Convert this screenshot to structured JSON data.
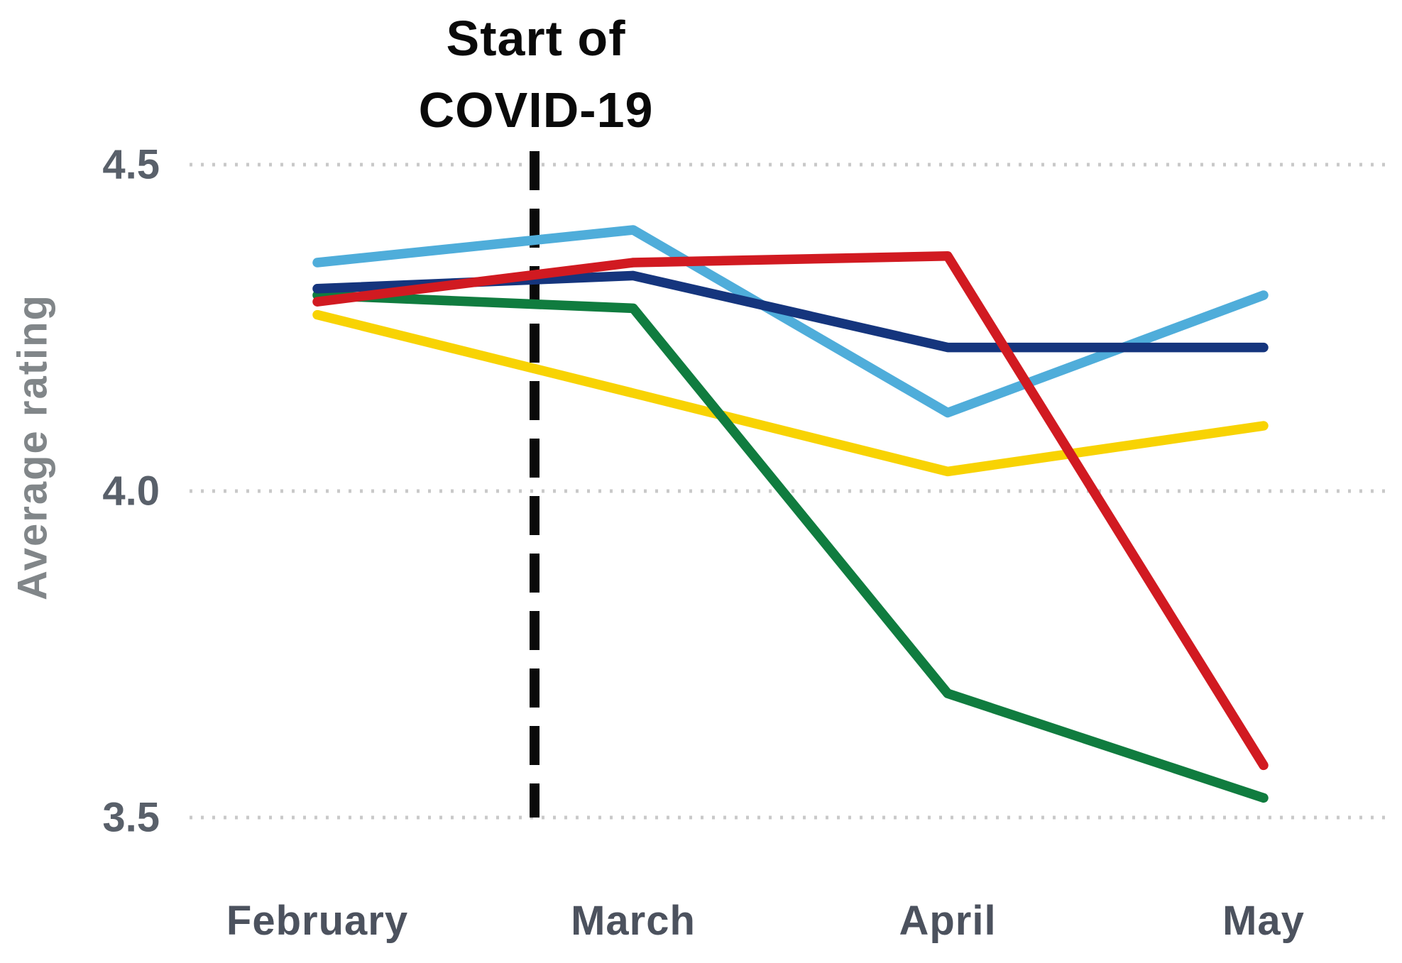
{
  "annotation": {
    "title_line1": "Start of",
    "title_line2": "COVID-19",
    "full_label": "Start of COVID-19",
    "marker": "vertical dashed black line between February and March"
  },
  "y_axis": {
    "label": "Average rating",
    "ticks": [
      {
        "label": "4.5",
        "value": 4.5
      },
      {
        "label": "4.0",
        "value": 4.0
      },
      {
        "label": "3.5",
        "value": 3.5
      }
    ]
  },
  "x_axis": {
    "categories": [
      "February",
      "March",
      "April",
      "May"
    ]
  },
  "colors": {
    "gridline": "#c9c9c9",
    "annotation_line": "#0a0a0a",
    "background": "#ffffff",
    "sky_blue_series": "#4fadda",
    "navy_series": "#15357d",
    "red_series": "#d11a21",
    "green_series": "#107c3f",
    "yellow_series": "#f8d303"
  },
  "chart_data": {
    "type": "line",
    "title": "Start of COVID-19 (annotation above dashed line)",
    "xlabel": "",
    "ylabel": "Average rating",
    "categories": [
      "February",
      "March",
      "April",
      "May"
    ],
    "ylim": [
      3.5,
      4.5
    ],
    "yticks": [
      3.5,
      4.0,
      4.5
    ],
    "grid": "horizontal dotted lines",
    "legend": "none",
    "series": [
      {
        "name": "yellow",
        "color": "#f8d303",
        "values": [
          4.27,
          4.15,
          4.03,
          4.1
        ]
      },
      {
        "name": "sky-blue",
        "color": "#4fadda",
        "values": [
          4.35,
          4.4,
          4.12,
          4.3
        ]
      },
      {
        "name": "green",
        "color": "#107c3f",
        "values": [
          4.3,
          4.28,
          3.69,
          3.53
        ]
      },
      {
        "name": "navy",
        "color": "#15357d",
        "values": [
          4.31,
          4.33,
          4.22,
          4.22
        ]
      },
      {
        "name": "red",
        "color": "#d11a21",
        "values": [
          4.29,
          4.35,
          4.36,
          3.58
        ]
      }
    ],
    "annotations": [
      {
        "type": "vline",
        "label": "Start of COVID-19",
        "x_between": [
          "February",
          "March"
        ],
        "style": "dashed",
        "color": "#0a0a0a"
      }
    ]
  }
}
